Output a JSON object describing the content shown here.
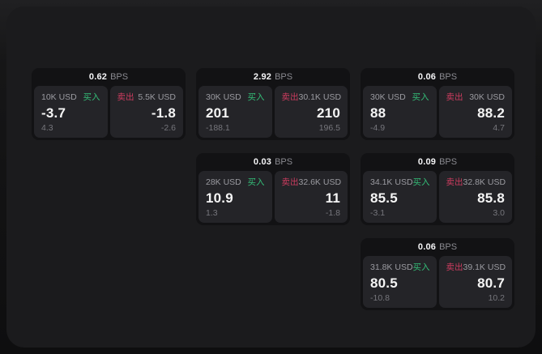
{
  "labels": {
    "bps_unit": "BPS",
    "buy": "买入",
    "sell": "卖出"
  },
  "colors": {
    "buy_green": "#34be78",
    "sell_red": "#cd3c5f",
    "window_bg": "#1b1b1d",
    "card_bg": "#121214",
    "panel_bg": "#242428"
  },
  "cards": [
    {
      "row": "1",
      "col": "1",
      "bps": "0.62",
      "buy": {
        "size": "10K USD",
        "main": "-3.7",
        "sub": "4.3"
      },
      "sell": {
        "size": "5.5K USD",
        "main": "-1.8",
        "sub": "-2.6"
      }
    },
    {
      "row": "1",
      "col": "2",
      "bps": "2.92",
      "buy": {
        "size": "30K USD",
        "main": "201",
        "sub": "-188.1"
      },
      "sell": {
        "size": "30.1K USD",
        "main": "210",
        "sub": "196.5"
      }
    },
    {
      "row": "1",
      "col": "3",
      "bps": "0.06",
      "buy": {
        "size": "30K USD",
        "main": "88",
        "sub": "-4.9"
      },
      "sell": {
        "size": "30K USD",
        "main": "88.2",
        "sub": "4.7"
      }
    },
    {
      "row": "2",
      "col": "2",
      "bps": "0.03",
      "buy": {
        "size": "28K USD",
        "main": "10.9",
        "sub": "1.3"
      },
      "sell": {
        "size": "32.6K USD",
        "main": "11",
        "sub": "-1.8"
      }
    },
    {
      "row": "2",
      "col": "3",
      "bps": "0.09",
      "buy": {
        "size": "34.1K USD",
        "main": "85.5",
        "sub": "-3.1"
      },
      "sell": {
        "size": "32.8K USD",
        "main": "85.8",
        "sub": "3.0"
      }
    },
    {
      "row": "3",
      "col": "3",
      "bps": "0.06",
      "buy": {
        "size": "31.8K USD",
        "main": "80.5",
        "sub": "-10.8"
      },
      "sell": {
        "size": "39.1K USD",
        "main": "80.7",
        "sub": "10.2"
      }
    }
  ]
}
